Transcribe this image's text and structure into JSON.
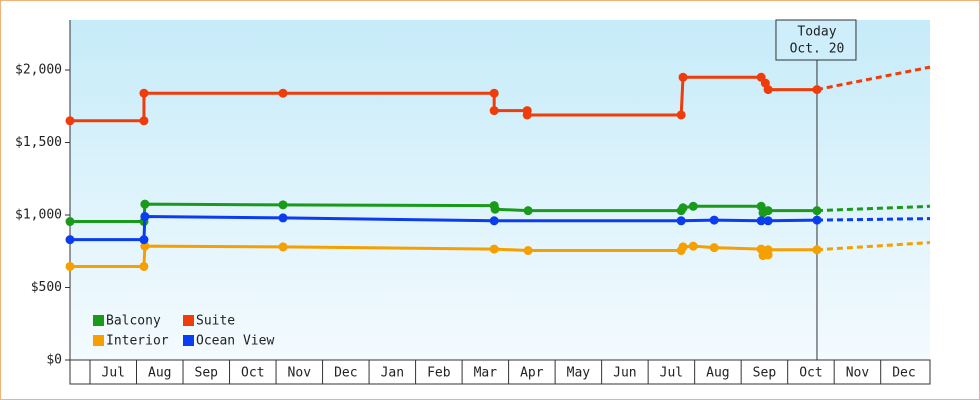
{
  "chart_data": {
    "type": "line",
    "xlim": [
      -0.43,
      18.06
    ],
    "ylim": [
      0,
      2345
    ],
    "xticks": [
      {
        "value": 0.5,
        "label": "Jul"
      },
      {
        "value": 1.5,
        "label": "Aug"
      },
      {
        "value": 2.5,
        "label": "Sep"
      },
      {
        "value": 3.5,
        "label": "Oct"
      },
      {
        "value": 4.5,
        "label": "Nov"
      },
      {
        "value": 5.5,
        "label": "Dec"
      },
      {
        "value": 6.5,
        "label": "Jan"
      },
      {
        "value": 7.5,
        "label": "Feb"
      },
      {
        "value": 8.5,
        "label": "Mar"
      },
      {
        "value": 9.5,
        "label": "Apr"
      },
      {
        "value": 10.5,
        "label": "May"
      },
      {
        "value": 11.5,
        "label": "Jun"
      },
      {
        "value": 12.5,
        "label": "Jul"
      },
      {
        "value": 13.5,
        "label": "Aug"
      },
      {
        "value": 14.5,
        "label": "Sep"
      },
      {
        "value": 15.5,
        "label": "Oct"
      },
      {
        "value": 16.5,
        "label": "Nov"
      },
      {
        "value": 17.5,
        "label": "Dec"
      }
    ],
    "yticks": [
      {
        "value": 0,
        "label": "$0"
      },
      {
        "value": 500,
        "label": "$500"
      },
      {
        "value": 1000,
        "label": "$1,000"
      },
      {
        "value": 1500,
        "label": "$1,500"
      },
      {
        "value": 2000,
        "label": "$2,000"
      }
    ],
    "annotation": {
      "x": 15.63,
      "lines": [
        "Today",
        "Oct. 20"
      ]
    },
    "legend": "lower left",
    "series": [
      {
        "name": "Balcony",
        "color": "#1a9a1a",
        "x": [
          -0.43,
          1.16,
          1.18,
          4.15,
          8.69,
          8.71,
          9.42,
          12.71,
          12.75,
          12.97,
          14.43,
          14.47,
          14.58,
          15.63
        ],
        "values": [
          955,
          955,
          1075,
          1070,
          1065,
          1040,
          1030,
          1030,
          1050,
          1060,
          1060,
          1015,
          1030,
          1030
        ],
        "forecast_x": [
          15.63,
          18.06
        ],
        "forecast_values": [
          1030,
          1060
        ]
      },
      {
        "name": "Interior",
        "color": "#f5a000",
        "x": [
          -0.43,
          1.16,
          1.18,
          4.15,
          8.69,
          9.42,
          12.71,
          12.75,
          12.97,
          13.42,
          14.43,
          14.47,
          14.58,
          14.58,
          15.63
        ],
        "values": [
          645,
          645,
          785,
          780,
          765,
          755,
          755,
          780,
          785,
          775,
          765,
          720,
          725,
          760,
          760
        ],
        "forecast_x": [
          15.63,
          18.06
        ],
        "forecast_values": [
          760,
          810
        ]
      },
      {
        "name": "Suite",
        "color": "#f03c0a",
        "x": [
          -0.43,
          1.16,
          1.16,
          4.15,
          8.69,
          8.69,
          9.4,
          9.4,
          12.71,
          12.75,
          14.43,
          14.52,
          14.58,
          15.63
        ],
        "values": [
          1650,
          1650,
          1840,
          1840,
          1840,
          1720,
          1720,
          1690,
          1690,
          1950,
          1950,
          1910,
          1865,
          1865
        ],
        "forecast_x": [
          15.63,
          18.06
        ],
        "forecast_values": [
          1865,
          2020
        ]
      },
      {
        "name": "Ocean View",
        "color": "#0a3cf0",
        "x": [
          -0.43,
          1.16,
          1.18,
          4.15,
          8.69,
          12.71,
          13.42,
          14.43,
          14.58,
          15.63
        ],
        "values": [
          830,
          830,
          990,
          980,
          960,
          960,
          965,
          960,
          960,
          965
        ],
        "forecast_x": [
          15.63,
          18.06
        ],
        "forecast_values": [
          965,
          975
        ]
      }
    ]
  }
}
